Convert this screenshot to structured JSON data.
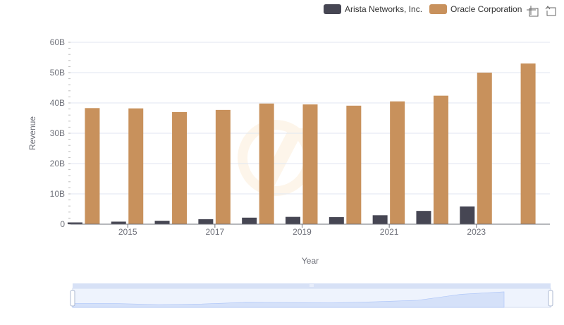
{
  "chart_data": {
    "type": "bar",
    "title": "",
    "xlabel": "Year",
    "ylabel": "Revenue",
    "ylim": [
      0,
      60000000000
    ],
    "y_ticks": [
      0,
      10000000000,
      20000000000,
      30000000000,
      40000000000,
      50000000000,
      60000000000
    ],
    "y_tick_labels": [
      "0",
      "10B",
      "20B",
      "30B",
      "40B",
      "50B",
      "60B"
    ],
    "categories": [
      "2014",
      "2015",
      "2016",
      "2017",
      "2018",
      "2019",
      "2020",
      "2021",
      "2022",
      "2023",
      "2024"
    ],
    "x_tick_labels": [
      "2015",
      "2017",
      "2019",
      "2021",
      "2023"
    ],
    "legend_position": "top-right",
    "series": [
      {
        "name": "Arista Networks, Inc.",
        "color": "#464653",
        "values": [
          584000000,
          838000000,
          1130000000,
          1650000000,
          2150000000,
          2410000000,
          2320000000,
          2950000000,
          4380000000,
          5860000000,
          null
        ]
      },
      {
        "name": "Oracle Corporation",
        "color": "#c8915c",
        "values": [
          38300000000,
          38200000000,
          37000000000,
          37700000000,
          39800000000,
          39500000000,
          39100000000,
          40500000000,
          42400000000,
          50000000000,
          53000000000
        ]
      }
    ]
  },
  "toolbar": {
    "zoom_icon": "zoom-area-icon",
    "restore_icon": "restore-icon"
  },
  "data_zoom": {
    "range_start": 0,
    "range_end": 100
  }
}
